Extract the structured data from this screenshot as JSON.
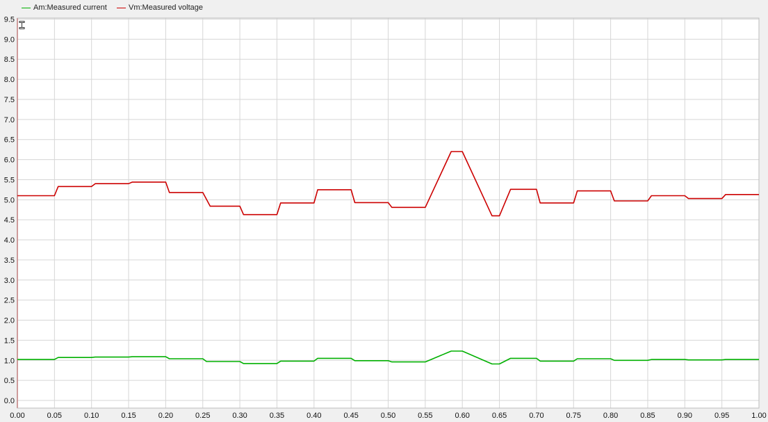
{
  "legend": {
    "position": "top-left",
    "items": [
      {
        "label": "Am:Measured current",
        "color": "#00b000"
      },
      {
        "label": "Vm:Measured voltage",
        "color": "#cc0000"
      }
    ]
  },
  "colors": {
    "plot_background": "#ffffff",
    "grid": "#d6d6d6",
    "window_background": "#f0f0f0"
  },
  "icons": {
    "cursor": "vertical-cursor-icon"
  },
  "chart_data": {
    "type": "line",
    "title": "",
    "xlabel": "",
    "ylabel": "",
    "xlim": [
      0,
      1.0
    ],
    "ylim": [
      0,
      9.5
    ],
    "grid": true,
    "x_ticks": [
      "0.00",
      "0.05",
      "0.10",
      "0.15",
      "0.20",
      "0.25",
      "0.30",
      "0.35",
      "0.40",
      "0.45",
      "0.50",
      "0.55",
      "0.60",
      "0.65",
      "0.70",
      "0.75",
      "0.80",
      "0.85",
      "0.90",
      "0.95",
      "1.00"
    ],
    "y_ticks": [
      "0.0",
      "0.5",
      "1.0",
      "1.5",
      "2.0",
      "2.5",
      "3.0",
      "3.5",
      "4.0",
      "4.5",
      "5.0",
      "5.5",
      "6.0",
      "6.5",
      "7.0",
      "7.5",
      "8.0",
      "8.5",
      "9.0",
      "9.5"
    ],
    "series": [
      {
        "name": "Am:Measured current",
        "color": "#00b000",
        "x": [
          0,
          0.05,
          0.055,
          0.1,
          0.105,
          0.15,
          0.155,
          0.2,
          0.205,
          0.25,
          0.255,
          0.3,
          0.305,
          0.35,
          0.355,
          0.4,
          0.405,
          0.45,
          0.455,
          0.5,
          0.505,
          0.55,
          0.585,
          0.6,
          0.64,
          0.65,
          0.665,
          0.7,
          0.705,
          0.75,
          0.755,
          0.8,
          0.805,
          0.85,
          0.855,
          0.9,
          0.905,
          0.95,
          0.955,
          1.0
        ],
        "y": [
          1.02,
          1.02,
          1.07,
          1.07,
          1.08,
          1.08,
          1.09,
          1.09,
          1.04,
          1.04,
          0.97,
          0.97,
          0.92,
          0.92,
          0.98,
          0.98,
          1.05,
          1.05,
          0.99,
          0.99,
          0.96,
          0.96,
          1.23,
          1.23,
          0.91,
          0.91,
          1.05,
          1.05,
          0.98,
          0.98,
          1.04,
          1.04,
          1.0,
          1.0,
          1.02,
          1.02,
          1.01,
          1.01,
          1.02,
          1.02
        ]
      },
      {
        "name": "Vm:Measured voltage",
        "color": "#cc0000",
        "x": [
          0,
          0.05,
          0.055,
          0.1,
          0.105,
          0.15,
          0.155,
          0.2,
          0.205,
          0.25,
          0.26,
          0.3,
          0.305,
          0.35,
          0.355,
          0.4,
          0.405,
          0.45,
          0.455,
          0.5,
          0.505,
          0.55,
          0.585,
          0.6,
          0.64,
          0.65,
          0.665,
          0.7,
          0.705,
          0.75,
          0.755,
          0.8,
          0.805,
          0.85,
          0.855,
          0.9,
          0.905,
          0.95,
          0.955,
          1.0
        ],
        "y": [
          5.1,
          5.1,
          5.33,
          5.33,
          5.4,
          5.4,
          5.44,
          5.44,
          5.18,
          5.18,
          4.84,
          4.84,
          4.63,
          4.63,
          4.92,
          4.92,
          5.25,
          5.25,
          4.93,
          4.93,
          4.81,
          4.81,
          6.2,
          6.2,
          4.6,
          4.6,
          5.26,
          5.26,
          4.92,
          4.92,
          5.22,
          5.22,
          4.97,
          4.97,
          5.1,
          5.1,
          5.03,
          5.03,
          5.13,
          5.13
        ]
      }
    ]
  }
}
